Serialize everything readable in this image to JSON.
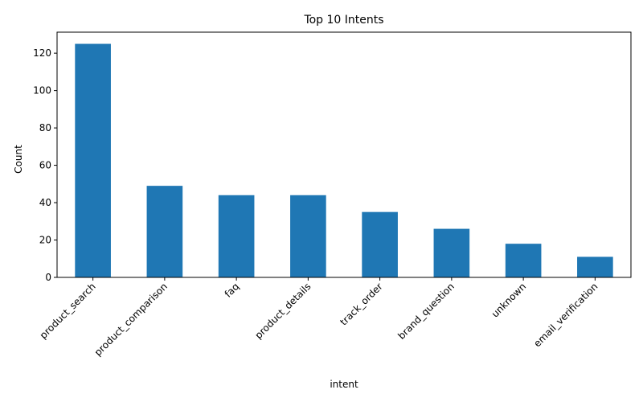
{
  "chart_data": {
    "type": "bar",
    "title": "Top 10 Intents",
    "xlabel": "intent",
    "ylabel": "Count",
    "categories": [
      "product_search",
      "product_comparison",
      "faq",
      "product_details",
      "track_order",
      "brand_question",
      "unknown",
      "email_verification"
    ],
    "values": [
      125,
      49,
      44,
      44,
      35,
      26,
      18,
      11
    ],
    "ylim": [
      0,
      131.25
    ],
    "yticks": [
      0,
      20,
      40,
      60,
      80,
      100,
      120
    ],
    "grid": false,
    "legend": "none",
    "bar_color": "#1f77b4"
  }
}
